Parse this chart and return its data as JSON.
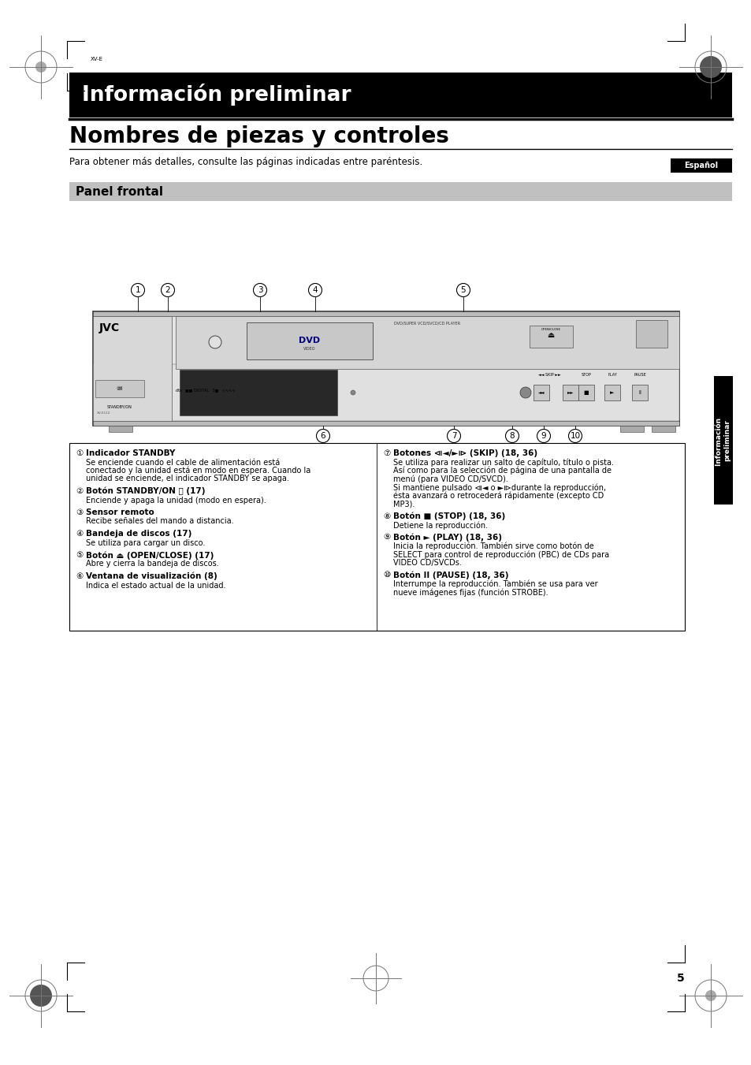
{
  "page_bg": "#ffffff",
  "header_bg": "#000000",
  "header_text": "Información preliminar",
  "header_text_color": "#ffffff",
  "header_font_size": 19,
  "section_title": "Nombres de piezas y controles",
  "section_title_size": 20,
  "intro_text": "Para obtener más detalles, consulte las páginas indicadas entre paréntesis.",
  "intro_size": 8.5,
  "espanol_text": "Español",
  "espanol_bg": "#000000",
  "espanol_color": "#ffffff",
  "panel_bg": "#c0c0c0",
  "panel_text": "Panel frontal",
  "panel_text_size": 11,
  "side_tab_bg": "#000000",
  "side_tab_text": "Información\npreliminar",
  "side_tab_color": "#ffffff",
  "page_number": "5",
  "left_col_items": [
    {
      "num": "①",
      "bold": "Indicador STANDBY",
      "text": "Se enciende cuando el cable de alimentación está\nconectado y la unidad está en modo en espera. Cuando la\nunidad se enciende, el indicador STANDBY se apaga."
    },
    {
      "num": "②",
      "bold": "Botón STANDBY/ON ⏻ (17)",
      "text": "Enciende y apaga la unidad (modo en espera)."
    },
    {
      "num": "③",
      "bold": "Sensor remoto",
      "text": "Recibe señales del mando a distancia."
    },
    {
      "num": "④",
      "bold": "Bandeja de discos (17)",
      "text": "Se utiliza para cargar un disco."
    },
    {
      "num": "⑤",
      "bold": "Botón ⏏ (OPEN/CLOSE) (17)",
      "text": "Abre y cierra la bandeja de discos."
    },
    {
      "num": "⑥",
      "bold": "Ventana de visualización (8)",
      "text": "Indica el estado actual de la unidad."
    }
  ],
  "right_col_items": [
    {
      "num": "⑦",
      "bold": "Botones ⧏◄/►⧐ (SKIP) (18, 36)",
      "text": "Se utiliza para realizar un salto de capítulo, título o pista.\nAsí como para la selección de página de una pantalla de\nmenú (para VIDEO CD/SVCD).\nSi mantiene pulsado ⧏◄ o ►⧐durante la reproducción,\nésta avanzará o retrocederá rápidamente (excepto CD\nMP3)."
    },
    {
      "num": "⑧",
      "bold": "Botón ■ (STOP) (18, 36)",
      "text": "Detiene la reproducción."
    },
    {
      "num": "⑨",
      "bold": "Botón ► (PLAY) (18, 36)",
      "text": "Inicia la reproducción. También sirve como botón de\nSELECT para control de reproducción (PBC) de CDs para\nVIDEO CD/SVCDs."
    },
    {
      "num": "⑩",
      "bold": "Botón II (PAUSE) (18, 36)",
      "text": "Interrumpe la reproducción. También se usa para ver\nnueve imágenes fijas (función STROBE)."
    }
  ]
}
